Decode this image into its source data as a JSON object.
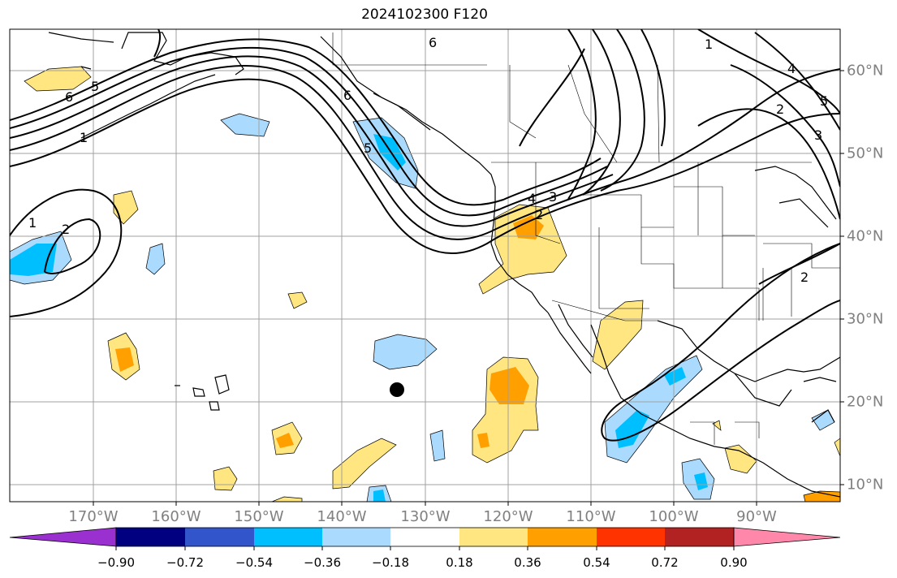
{
  "title": "2024102300 F120",
  "lon_labels": [
    "170°W",
    "160°W",
    "150°W",
    "140°W",
    "130°W",
    "120°W",
    "110°W",
    "100°W",
    "90°W"
  ],
  "lat_labels": [
    "60°N",
    "50°N",
    "40°N",
    "30°N",
    "20°N",
    "10°N"
  ],
  "colorbar": {
    "ticks": [
      "−0.90",
      "−0.72",
      "−0.54",
      "−0.36",
      "−0.18",
      "0.18",
      "0.36",
      "0.54",
      "0.72",
      "0.90"
    ],
    "colors": [
      "#9b30d0",
      "#000080",
      "#3355cc",
      "#00bfff",
      "#aadbff",
      "#ffffff",
      "#ffe680",
      "#ffa000",
      "#ff3300",
      "#b22222",
      "#ff88aa"
    ]
  },
  "contour_labels": [
    "6",
    "5",
    "1",
    "6",
    "5",
    "4",
    "3",
    "2",
    "1",
    "2",
    "6",
    "5",
    "4",
    "3",
    "2",
    "1",
    "2"
  ],
  "colors": {
    "land": "#000000",
    "grid": "#a0a0a0",
    "contour": "#000000",
    "marker": "#000000"
  }
}
